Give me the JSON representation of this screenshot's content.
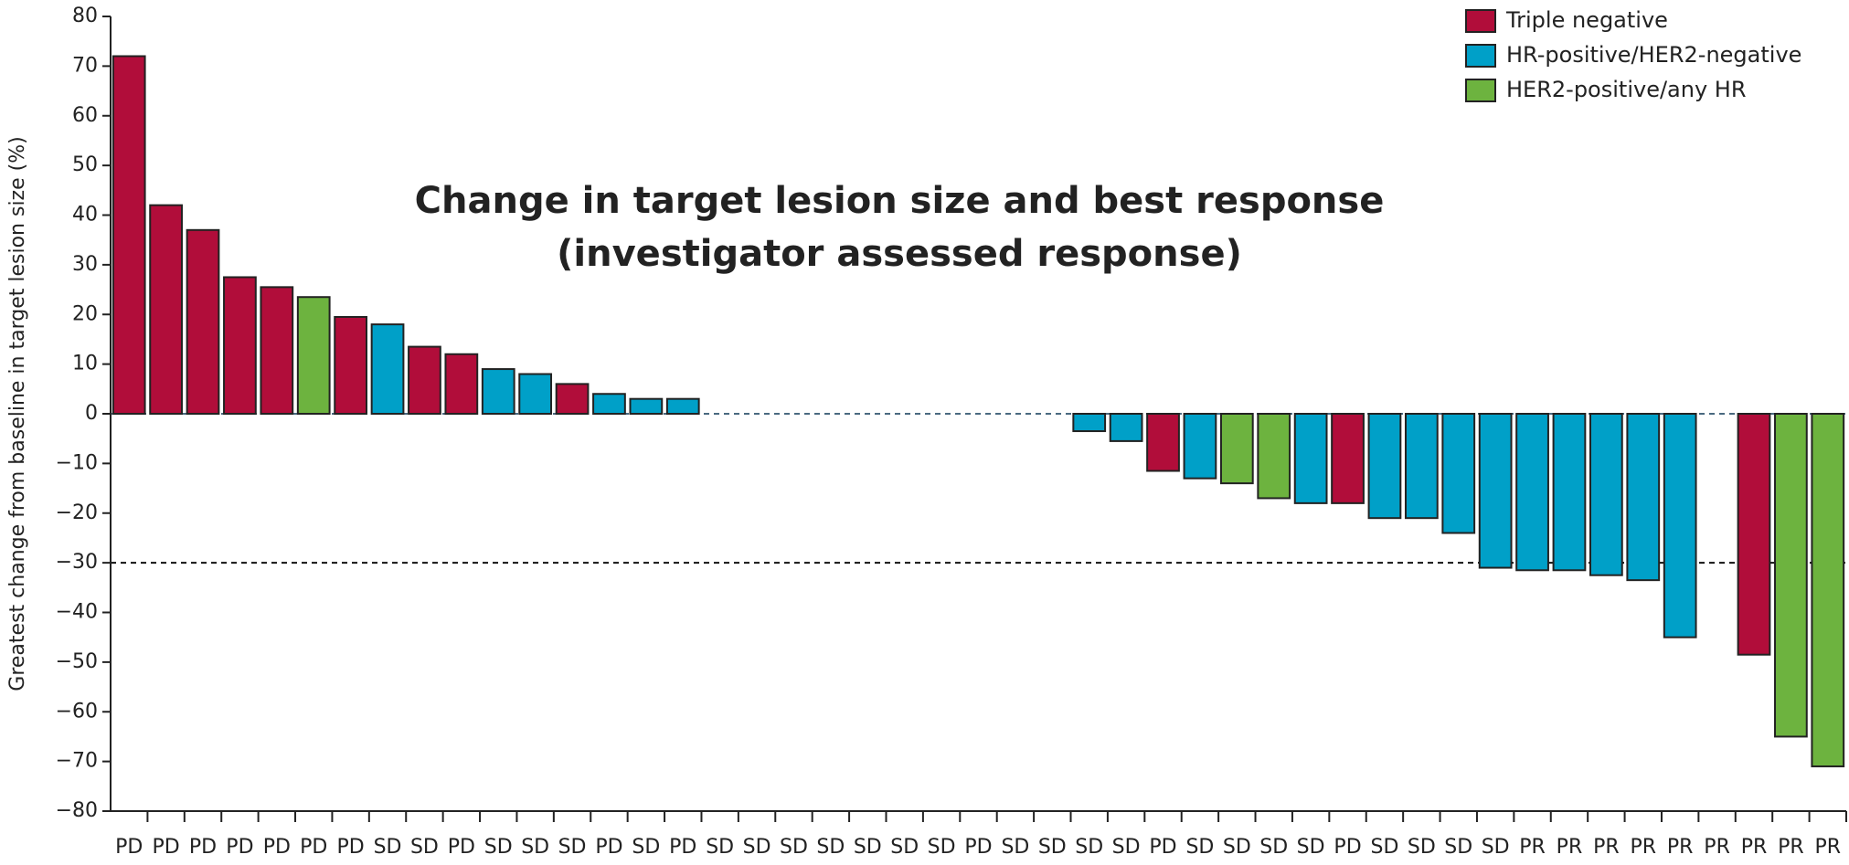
{
  "chart_data": {
    "type": "bar",
    "title": [
      "Change in target lesion size and best response",
      "(investigator assessed response)"
    ],
    "ylabel": "Greatest change from baseline in target lesion size (%)",
    "categories": [
      "PD",
      "PD",
      "PD",
      "PD",
      "PD",
      "PD",
      "PD",
      "SD",
      "SD",
      "PD",
      "SD",
      "SD",
      "SD",
      "PD",
      "SD",
      "PD",
      "SD",
      "SD",
      "SD",
      "SD",
      "SD",
      "SD",
      "SD",
      "PD",
      "SD",
      "SD",
      "SD",
      "SD",
      "PD",
      "SD",
      "SD",
      "SD",
      "SD",
      "PD",
      "SD",
      "SD",
      "SD",
      "SD",
      "PR",
      "PR",
      "PR",
      "PR",
      "PR",
      "PR",
      "PR",
      "PR",
      "PR"
    ],
    "series": [
      {
        "name": "Triple negative",
        "color": "#b10d3a",
        "values": [
          72,
          42,
          37,
          27.5,
          25.5,
          null,
          19.5,
          null,
          13.5,
          12,
          null,
          null,
          6,
          null,
          null,
          null,
          null,
          null,
          null,
          null,
          null,
          null,
          null,
          null,
          null,
          null,
          null,
          null,
          -11.5,
          null,
          null,
          null,
          null,
          -18,
          null,
          null,
          null,
          null,
          null,
          null,
          null,
          null,
          null,
          null,
          -48.5,
          null,
          null
        ]
      },
      {
        "name": "HR-positive/HER2-negative",
        "color": "#00a0c8",
        "values": [
          null,
          null,
          null,
          null,
          null,
          null,
          null,
          18,
          null,
          null,
          9,
          8,
          null,
          4,
          3,
          3,
          null,
          null,
          null,
          null,
          null,
          null,
          null,
          null,
          null,
          null,
          -3.5,
          -5.5,
          null,
          -13,
          null,
          null,
          -18,
          null,
          -21,
          -21,
          -24,
          -31,
          -31.5,
          -31.5,
          -32.5,
          -33.5,
          -45,
          null,
          null,
          null,
          null
        ]
      },
      {
        "name": "HER2-positive/any HR",
        "color": "#6db33f",
        "values": [
          null,
          null,
          null,
          null,
          null,
          23.5,
          null,
          null,
          null,
          null,
          null,
          null,
          null,
          null,
          null,
          null,
          null,
          null,
          null,
          null,
          null,
          null,
          null,
          null,
          null,
          null,
          null,
          null,
          null,
          null,
          -14,
          -17,
          null,
          null,
          null,
          null,
          null,
          null,
          null,
          null,
          null,
          null,
          null,
          null,
          null,
          -65,
          -71
        ]
      }
    ],
    "ylim": [
      -80,
      80
    ],
    "yticks": [
      {
        "value": -80,
        "label": "−80"
      },
      {
        "value": -70,
        "label": "−70"
      },
      {
        "value": -60,
        "label": "−60"
      },
      {
        "value": -50,
        "label": "−50"
      },
      {
        "value": -40,
        "label": "−40"
      },
      {
        "value": -30,
        "label": "−30"
      },
      {
        "value": -20,
        "label": "−20"
      },
      {
        "value": -10,
        "label": "−10"
      },
      0,
      10,
      20,
      30,
      40,
      50,
      60,
      70,
      80
    ],
    "reference_lines": [
      0,
      -30
    ],
    "legend": "top-right"
  }
}
